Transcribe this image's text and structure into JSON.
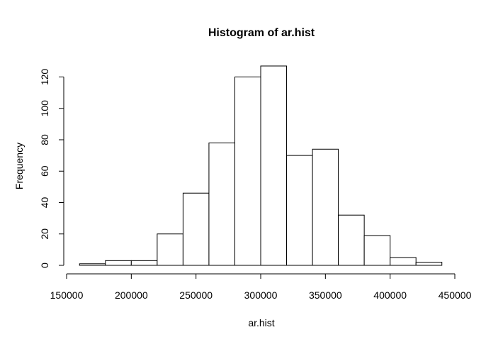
{
  "chart_data": {
    "type": "bar",
    "title": "Histogram of ar.hist",
    "xlabel": "ar.hist",
    "ylabel": "Frequency",
    "bin_edges": [
      160000,
      180000,
      200000,
      220000,
      240000,
      260000,
      280000,
      300000,
      320000,
      340000,
      360000,
      380000,
      400000,
      420000,
      440000
    ],
    "values": [
      1,
      3,
      3,
      20,
      46,
      78,
      120,
      127,
      70,
      74,
      32,
      19,
      5,
      2
    ],
    "xlim": [
      150000,
      450000
    ],
    "ylim": [
      0,
      127
    ],
    "xticks": [
      "150000",
      "200000",
      "250000",
      "300000",
      "350000",
      "400000",
      "450000"
    ],
    "yticks": [
      "0",
      "20",
      "40",
      "60",
      "80",
      "100",
      "120"
    ],
    "grid": false,
    "legend": "none"
  }
}
